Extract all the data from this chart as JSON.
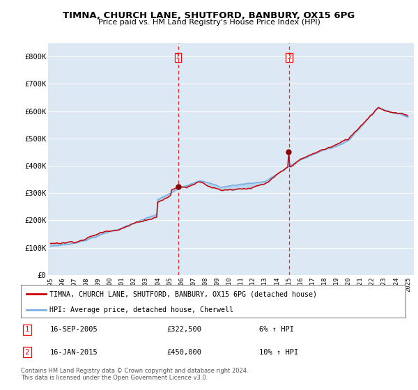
{
  "title": "TIMNA, CHURCH LANE, SHUTFORD, BANBURY, OX15 6PG",
  "subtitle": "Price paid vs. HM Land Registry's House Price Index (HPI)",
  "ylabel_ticks": [
    "£0",
    "£100K",
    "£200K",
    "£300K",
    "£400K",
    "£500K",
    "£600K",
    "£700K",
    "£800K"
  ],
  "ytick_vals": [
    0,
    100000,
    200000,
    300000,
    400000,
    500000,
    600000,
    700000,
    800000
  ],
  "ylim": [
    0,
    850000
  ],
  "xlim_start": 1994.8,
  "xlim_end": 2025.5,
  "background_color": "#dce9f5",
  "hpi_color": "#7ab0e0",
  "price_color": "#cc0000",
  "legend_label_price": "TIMNA, CHURCH LANE, SHUTFORD, BANBURY, OX15 6PG (detached house)",
  "legend_label_hpi": "HPI: Average price, detached house, Cherwell",
  "transaction1_date": "16-SEP-2005",
  "transaction1_price": "£322,500",
  "transaction1_hpi": "6% ↑ HPI",
  "transaction1_x": 2005.71,
  "transaction1_y": 322500,
  "transaction2_date": "16-JAN-2015",
  "transaction2_price": "£450,000",
  "transaction2_hpi": "10% ↑ HPI",
  "transaction2_x": 2015.04,
  "transaction2_y": 450000,
  "footnote": "Contains HM Land Registry data © Crown copyright and database right 2024.\nThis data is licensed under the Open Government Licence v3.0.",
  "xticks": [
    1995,
    1996,
    1997,
    1998,
    1999,
    2000,
    2001,
    2002,
    2003,
    2004,
    2005,
    2006,
    2007,
    2008,
    2009,
    2010,
    2011,
    2012,
    2013,
    2014,
    2015,
    2016,
    2017,
    2018,
    2019,
    2020,
    2021,
    2022,
    2023,
    2024,
    2025
  ]
}
